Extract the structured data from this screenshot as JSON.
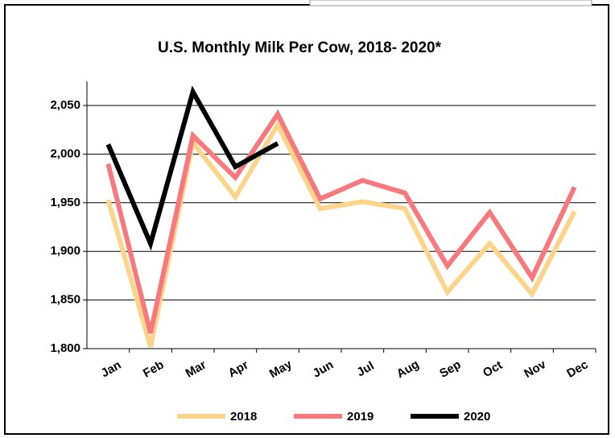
{
  "chart_data": {
    "type": "line",
    "title": "U.S. Monthly Milk Per Cow, 2018- 2020*",
    "categories": [
      "Jan",
      "Feb",
      "Mar",
      "Apr",
      "May",
      "Jun",
      "Jul",
      "Aug",
      "Sep",
      "Oct",
      "Nov",
      "Dec"
    ],
    "series": [
      {
        "name": "2018",
        "color": "#fdd58a",
        "values": [
          1953,
          1802,
          2012,
          1956,
          2030,
          1944,
          1951,
          1944,
          1858,
          1908,
          1856,
          1941
        ]
      },
      {
        "name": "2019",
        "color": "#f7797d",
        "values": [
          1990,
          1816,
          2019,
          1976,
          2041,
          1954,
          1973,
          1960,
          1885,
          1940,
          1873,
          1966
        ]
      },
      {
        "name": "2020",
        "color": "#000000",
        "values": [
          2010,
          1908,
          2064,
          1987,
          2011,
          null,
          null,
          null,
          null,
          null,
          null,
          null
        ]
      }
    ],
    "ylim": [
      1800,
      2050
    ],
    "yticks": [
      {
        "value": 1800,
        "label": "1,800"
      },
      {
        "value": 1850,
        "label": "1,850"
      },
      {
        "value": 1900,
        "label": "1,900"
      },
      {
        "value": 1950,
        "label": "1,950"
      },
      {
        "value": 2000,
        "label": "2,000"
      },
      {
        "value": 2050,
        "label": "2,050"
      }
    ],
    "grid": true,
    "legend": "bottom"
  }
}
